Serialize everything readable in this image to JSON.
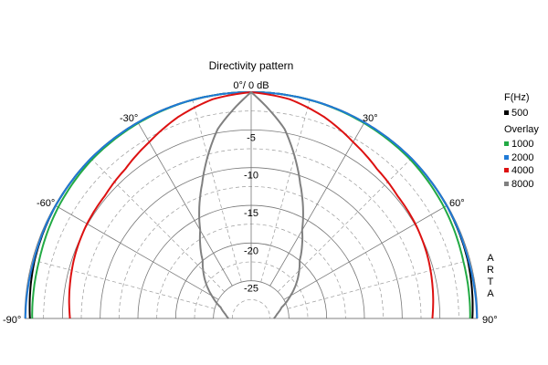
{
  "chart_data": {
    "type": "polar",
    "title": "Directivity pattern",
    "angle_range_deg": [
      -90,
      90
    ],
    "angle_ticks_deg": [
      -90,
      -60,
      -30,
      30,
      60,
      90
    ],
    "angle_tick_labels": [
      "-90°",
      "-60°",
      "-30°",
      "30°",
      "60°",
      "90°"
    ],
    "top_label": "0°/ 0 dB",
    "r_range_db": [
      -30,
      0
    ],
    "r_ticks_db": [
      -5,
      -10,
      -15,
      -20,
      -25
    ],
    "r_tick_labels": [
      "-5",
      "-10",
      "-15",
      "-20",
      "-25"
    ],
    "grid": true,
    "legend": {
      "placement": "right",
      "header": "F(Hz)",
      "overlay_header": "Overlay",
      "items": [
        {
          "label": "500",
          "color": "#000000"
        },
        {
          "label": "1000",
          "color": "#22aa44"
        },
        {
          "label": "2000",
          "color": "#1f7ad6"
        },
        {
          "label": "4000",
          "color": "#dd1111"
        },
        {
          "label": "8000",
          "color": "#808080"
        }
      ]
    },
    "watermark": "ARTA",
    "series": [
      {
        "name": "500",
        "color": "#000000",
        "angles": [
          -90,
          -75,
          -60,
          -45,
          -30,
          -15,
          0,
          15,
          30,
          45,
          60,
          75,
          90
        ],
        "values_db": [
          -0.7,
          -0.3,
          -0.1,
          0,
          0,
          0,
          0,
          0,
          0,
          0,
          -0.1,
          -0.3,
          -0.7
        ]
      },
      {
        "name": "1000",
        "color": "#22aa44",
        "angles": [
          -90,
          -75,
          -60,
          -45,
          -30,
          -15,
          0,
          15,
          30,
          45,
          60,
          75,
          90
        ],
        "values_db": [
          -1.0,
          -0.9,
          -0.5,
          -0.2,
          -0.1,
          0,
          0,
          0,
          -0.1,
          -0.2,
          -0.5,
          -0.9,
          -1.0
        ]
      },
      {
        "name": "2000",
        "color": "#1f7ad6",
        "angles": [
          -90,
          -75,
          -60,
          -45,
          -30,
          -15,
          0,
          15,
          30,
          45,
          60,
          75,
          90
        ],
        "values_db": [
          -0.1,
          -0.2,
          -0.1,
          0,
          0,
          0,
          0,
          0,
          0,
          0,
          -0.1,
          -0.2,
          -0.1
        ]
      },
      {
        "name": "4000",
        "color": "#dd1111",
        "angles": [
          -90,
          -80,
          -70,
          -60,
          -50,
          -40,
          -30,
          -20,
          -10,
          0,
          10,
          20,
          30,
          40,
          50,
          60,
          70,
          80,
          90
        ],
        "values_db": [
          -6.0,
          -5.6,
          -5.2,
          -4.9,
          -4.7,
          -4.1,
          -3.0,
          -1.6,
          -0.5,
          0,
          -0.5,
          -1.6,
          -3.0,
          -4.1,
          -4.7,
          -4.9,
          -5.2,
          -5.6,
          -6.0
        ]
      },
      {
        "name": "8000",
        "color": "#808080",
        "angles": [
          -90,
          -80,
          -70,
          -60,
          -50,
          -40,
          -30,
          -20,
          -10,
          0,
          10,
          20,
          30,
          40,
          50,
          60,
          70,
          80,
          90
        ],
        "values_db": [
          -27.0,
          -26.5,
          -25.7,
          -24.0,
          -22.0,
          -20.0,
          -16.5,
          -11.0,
          -4.5,
          0,
          -4.5,
          -11.0,
          -16.5,
          -20.0,
          -22.0,
          -24.0,
          -25.7,
          -26.5,
          -27.0
        ]
      }
    ]
  }
}
